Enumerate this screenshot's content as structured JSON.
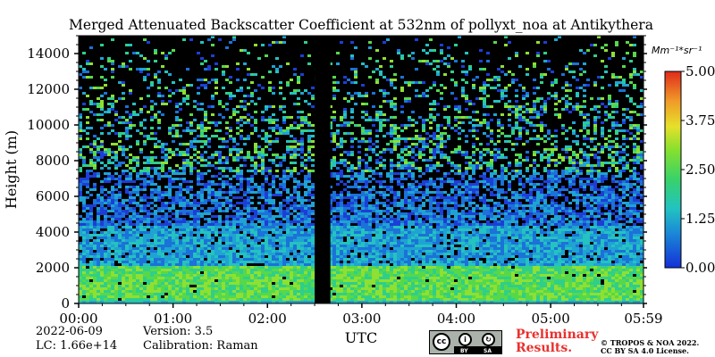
{
  "chart_data": {
    "type": "heatmap",
    "title": "Merged Attenuated Backscatter Coefficient at 532nm of pollyxt_noa at Antikythera",
    "xlabel": "UTC",
    "ylabel": "Height (m)",
    "x_ticks": [
      "00:00",
      "01:00",
      "02:00",
      "03:00",
      "04:00",
      "05:00",
      "05:59"
    ],
    "y_ticks": [
      0,
      2000,
      4000,
      6000,
      8000,
      10000,
      12000,
      14000
    ],
    "xlim": [
      "00:00",
      "05:59"
    ],
    "ylim": [
      0,
      15000
    ],
    "data_gap": {
      "start": "02:30",
      "end": "02:40"
    },
    "colorbar": {
      "label": "Mm⁻¹*sr⁻¹",
      "ticks": [
        "0.00",
        "1.25",
        "2.50",
        "3.75",
        "5.00"
      ],
      "range": [
        0,
        5
      ]
    },
    "colors": {
      "background": "#000000",
      "low": "#1f2fd0",
      "mid": "#26b8c8",
      "high": "#7fe03a",
      "peak": "#e03020"
    }
  },
  "meta": {
    "date": "2022-06-09",
    "version_label": "Version: 3.5",
    "lc_label": "LC: 1.66e+14",
    "calibration_label": "Calibration: Raman"
  },
  "badges": {
    "license_cc": "cc",
    "license_by": "BY",
    "license_sa": "SA",
    "preliminary_line1": "Preliminary",
    "preliminary_line2": "Results.",
    "copyright_line1": "© TROPOS & NOA 2022.",
    "copyright_line2": "CC BY SA 4.0 License."
  }
}
